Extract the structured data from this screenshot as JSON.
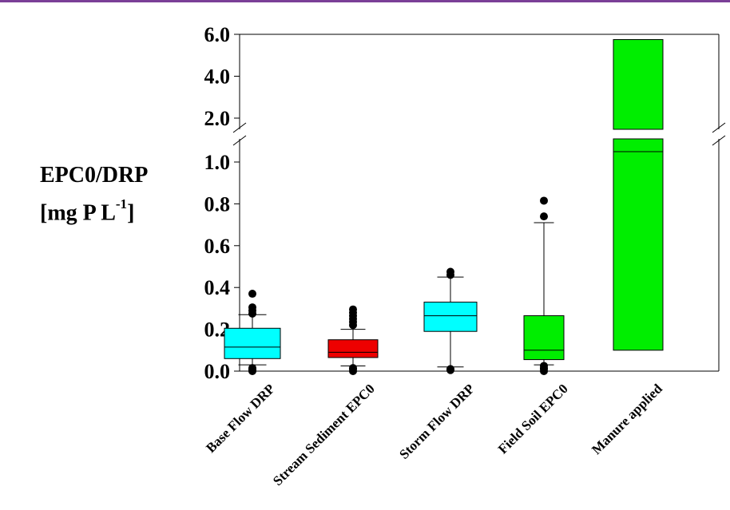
{
  "colors": {
    "accent_bar": "#7b3f97",
    "cyan": "#00ffff",
    "red": "#ee0000",
    "green": "#00ee00",
    "outlier": "#000000"
  },
  "chart_data": {
    "type": "box",
    "ylabel_line1": "EPC0/DRP",
    "ylabel_line2_main": "[mg P L",
    "ylabel_line2_sup": "-1",
    "ylabel_line2_end": "]",
    "y_axis_break": {
      "lower_range": [
        0,
        1.0
      ],
      "upper_range": [
        2.0,
        6.0
      ]
    },
    "lower_ticks": [
      0.0,
      0.2,
      0.4,
      0.6,
      0.8,
      1.0
    ],
    "upper_ticks": [
      2.0,
      4.0,
      6.0
    ],
    "categories": [
      "Base Flow DRP",
      "Stream Sediment EPC0",
      "Storm Flow DRP",
      "Field Soil EPC0",
      "Manure applied"
    ],
    "boxes": [
      {
        "category": "Base Flow DRP",
        "color": "#00ffff",
        "whisker_low": 0.03,
        "q1": 0.06,
        "median": 0.115,
        "q3": 0.205,
        "whisker_high": 0.27,
        "outliers": [
          0.0,
          0.005,
          0.01,
          0.015,
          0.275,
          0.29,
          0.305,
          0.37
        ]
      },
      {
        "category": "Stream Sediment EPC0",
        "color": "#ee0000",
        "whisker_low": 0.025,
        "q1": 0.065,
        "median": 0.09,
        "q3": 0.15,
        "whisker_high": 0.2,
        "outliers": [
          0.0,
          0.01,
          0.015,
          0.22,
          0.235,
          0.25,
          0.265,
          0.28,
          0.295
        ]
      },
      {
        "category": "Storm Flow DRP",
        "color": "#00ffff",
        "whisker_low": 0.02,
        "q1": 0.19,
        "median": 0.265,
        "q3": 0.33,
        "whisker_high": 0.45,
        "outliers": [
          0.005,
          0.01,
          0.46,
          0.475
        ]
      },
      {
        "category": "Field Soil EPC0",
        "color": "#00ee00",
        "whisker_low": 0.03,
        "q1": 0.055,
        "median": 0.1,
        "q3": 0.265,
        "whisker_high": 0.71,
        "outliers": [
          0.0,
          0.01,
          0.015,
          0.025,
          0.74,
          0.815
        ]
      },
      {
        "category": "Manure applied",
        "color": "#00ee00",
        "whisker_low": null,
        "q1": 0.1,
        "median": 1.05,
        "q3": 5.75,
        "whisker_high": null,
        "outliers": []
      }
    ]
  }
}
